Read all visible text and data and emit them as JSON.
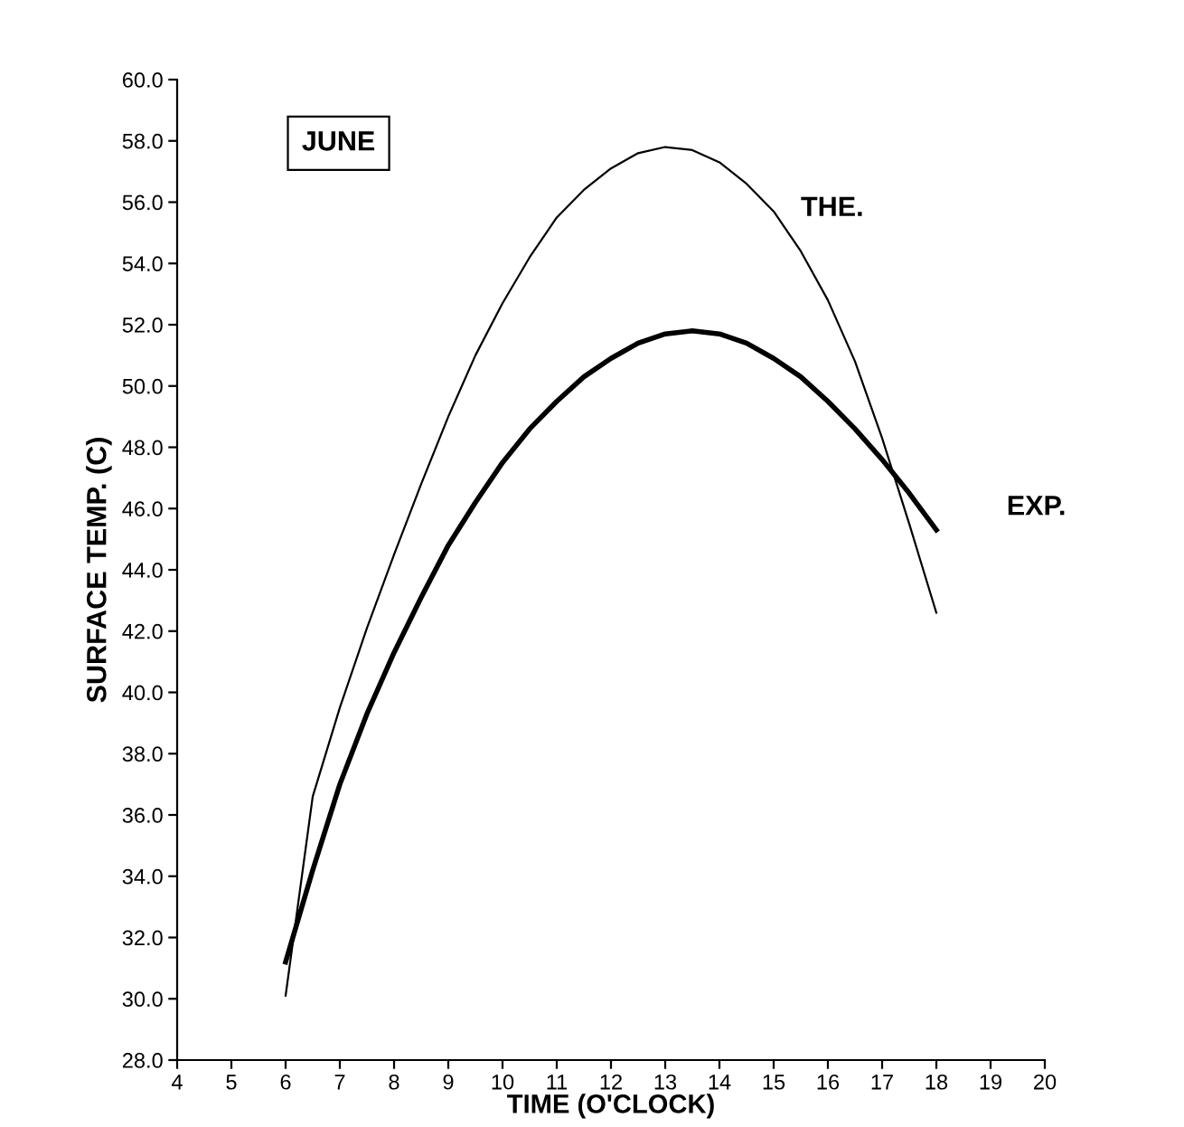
{
  "chart_data": {
    "type": "line",
    "xlabel": "TIME (O'CLOCK)",
    "ylabel": "SURFACE TEMP. (C)",
    "annotations": [
      "JUNE"
    ],
    "xlim": [
      4,
      20
    ],
    "xticks": [
      4,
      5,
      6,
      7,
      8,
      9,
      10,
      11,
      12,
      13,
      14,
      15,
      16,
      17,
      18,
      19,
      20
    ],
    "ylim": [
      28,
      60
    ],
    "yticks": [
      {
        "value": 28,
        "label": "28.0"
      },
      {
        "value": 30,
        "label": "30.0"
      },
      {
        "value": 32,
        "label": "32.0"
      },
      {
        "value": 34,
        "label": "34.0"
      },
      {
        "value": 36,
        "label": "36.0"
      },
      {
        "value": 38,
        "label": "38.0"
      },
      {
        "value": 40,
        "label": "40.0"
      },
      {
        "value": 42,
        "label": "42.0"
      },
      {
        "value": 44,
        "label": "44.0"
      },
      {
        "value": 46,
        "label": "46.0"
      },
      {
        "value": 48,
        "label": "48.0"
      },
      {
        "value": 50,
        "label": "50.0"
      },
      {
        "value": 52,
        "label": "52.0"
      },
      {
        "value": 54,
        "label": "54.0"
      },
      {
        "value": 56,
        "label": "56.0"
      },
      {
        "value": 58,
        "label": "58.0"
      },
      {
        "value": 60,
        "label": "60.0"
      }
    ],
    "grid": false,
    "legend": false,
    "series": [
      {
        "name": "THE.",
        "color": "#000000",
        "x": [
          6,
          6.5,
          7,
          7.5,
          8,
          8.5,
          9,
          9.5,
          10,
          10.5,
          11,
          11.5,
          12,
          12.5,
          13,
          13.5,
          14,
          14.5,
          15,
          15.5,
          16,
          16.5,
          17,
          17.5,
          18
        ],
        "values": [
          30.1,
          36.6,
          39.5,
          42.1,
          44.5,
          46.8,
          49.0,
          51.0,
          52.7,
          54.2,
          55.5,
          56.4,
          57.1,
          57.6,
          57.8,
          57.7,
          57.3,
          56.6,
          55.7,
          54.4,
          52.8,
          50.8,
          48.3,
          45.5,
          42.6
        ]
      },
      {
        "name": "EXP.",
        "color": "#000000",
        "x": [
          6,
          6.5,
          7,
          7.5,
          8,
          8.5,
          9,
          9.5,
          10,
          10.5,
          11,
          11.5,
          12,
          12.5,
          13,
          13.5,
          14,
          14.5,
          15,
          15.5,
          16,
          16.5,
          17,
          17.5,
          18
        ],
        "values": [
          31.2,
          34.2,
          37.0,
          39.3,
          41.3,
          43.1,
          44.8,
          46.2,
          47.5,
          48.6,
          49.5,
          50.3,
          50.9,
          51.4,
          51.7,
          51.8,
          51.7,
          51.4,
          50.9,
          50.3,
          49.5,
          48.6,
          47.6,
          46.5,
          45.3
        ]
      }
    ]
  }
}
